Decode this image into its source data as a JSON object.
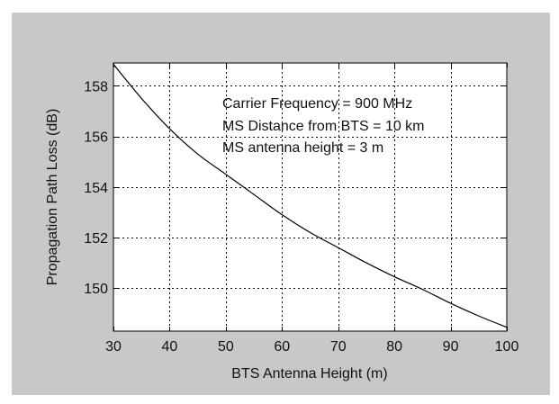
{
  "chart_data": {
    "type": "line",
    "title": "",
    "xlabel": "BTS Antenna Height  (m)",
    "ylabel": "Propagation Path Loss (dB)",
    "xlim": [
      30,
      100
    ],
    "ylim": [
      148.3,
      158.9
    ],
    "xticks": [
      30,
      40,
      50,
      60,
      70,
      80,
      90,
      100
    ],
    "yticks": [
      150,
      152,
      154,
      156,
      158
    ],
    "grid": true,
    "grid_style": "dotted",
    "annotations": [
      "Carrier Frequency = 900 MHz",
      "MS Distance from BTS = 10 km",
      "MS antenna height = 3 m"
    ],
    "series": [
      {
        "color": "#000000",
        "x": [
          30,
          35,
          40,
          45,
          50,
          55,
          60,
          65,
          70,
          75,
          80,
          85,
          90,
          95,
          100
        ],
        "y": [
          158.85,
          157.5,
          156.3,
          155.3,
          154.5,
          153.7,
          152.9,
          152.2,
          151.6,
          151.0,
          150.45,
          149.95,
          149.4,
          148.9,
          148.45
        ]
      }
    ]
  },
  "colors": {
    "figure_background": "#c8c8c8",
    "plot_background": "#ffffff",
    "line": "#000000",
    "grid": "#000000"
  }
}
